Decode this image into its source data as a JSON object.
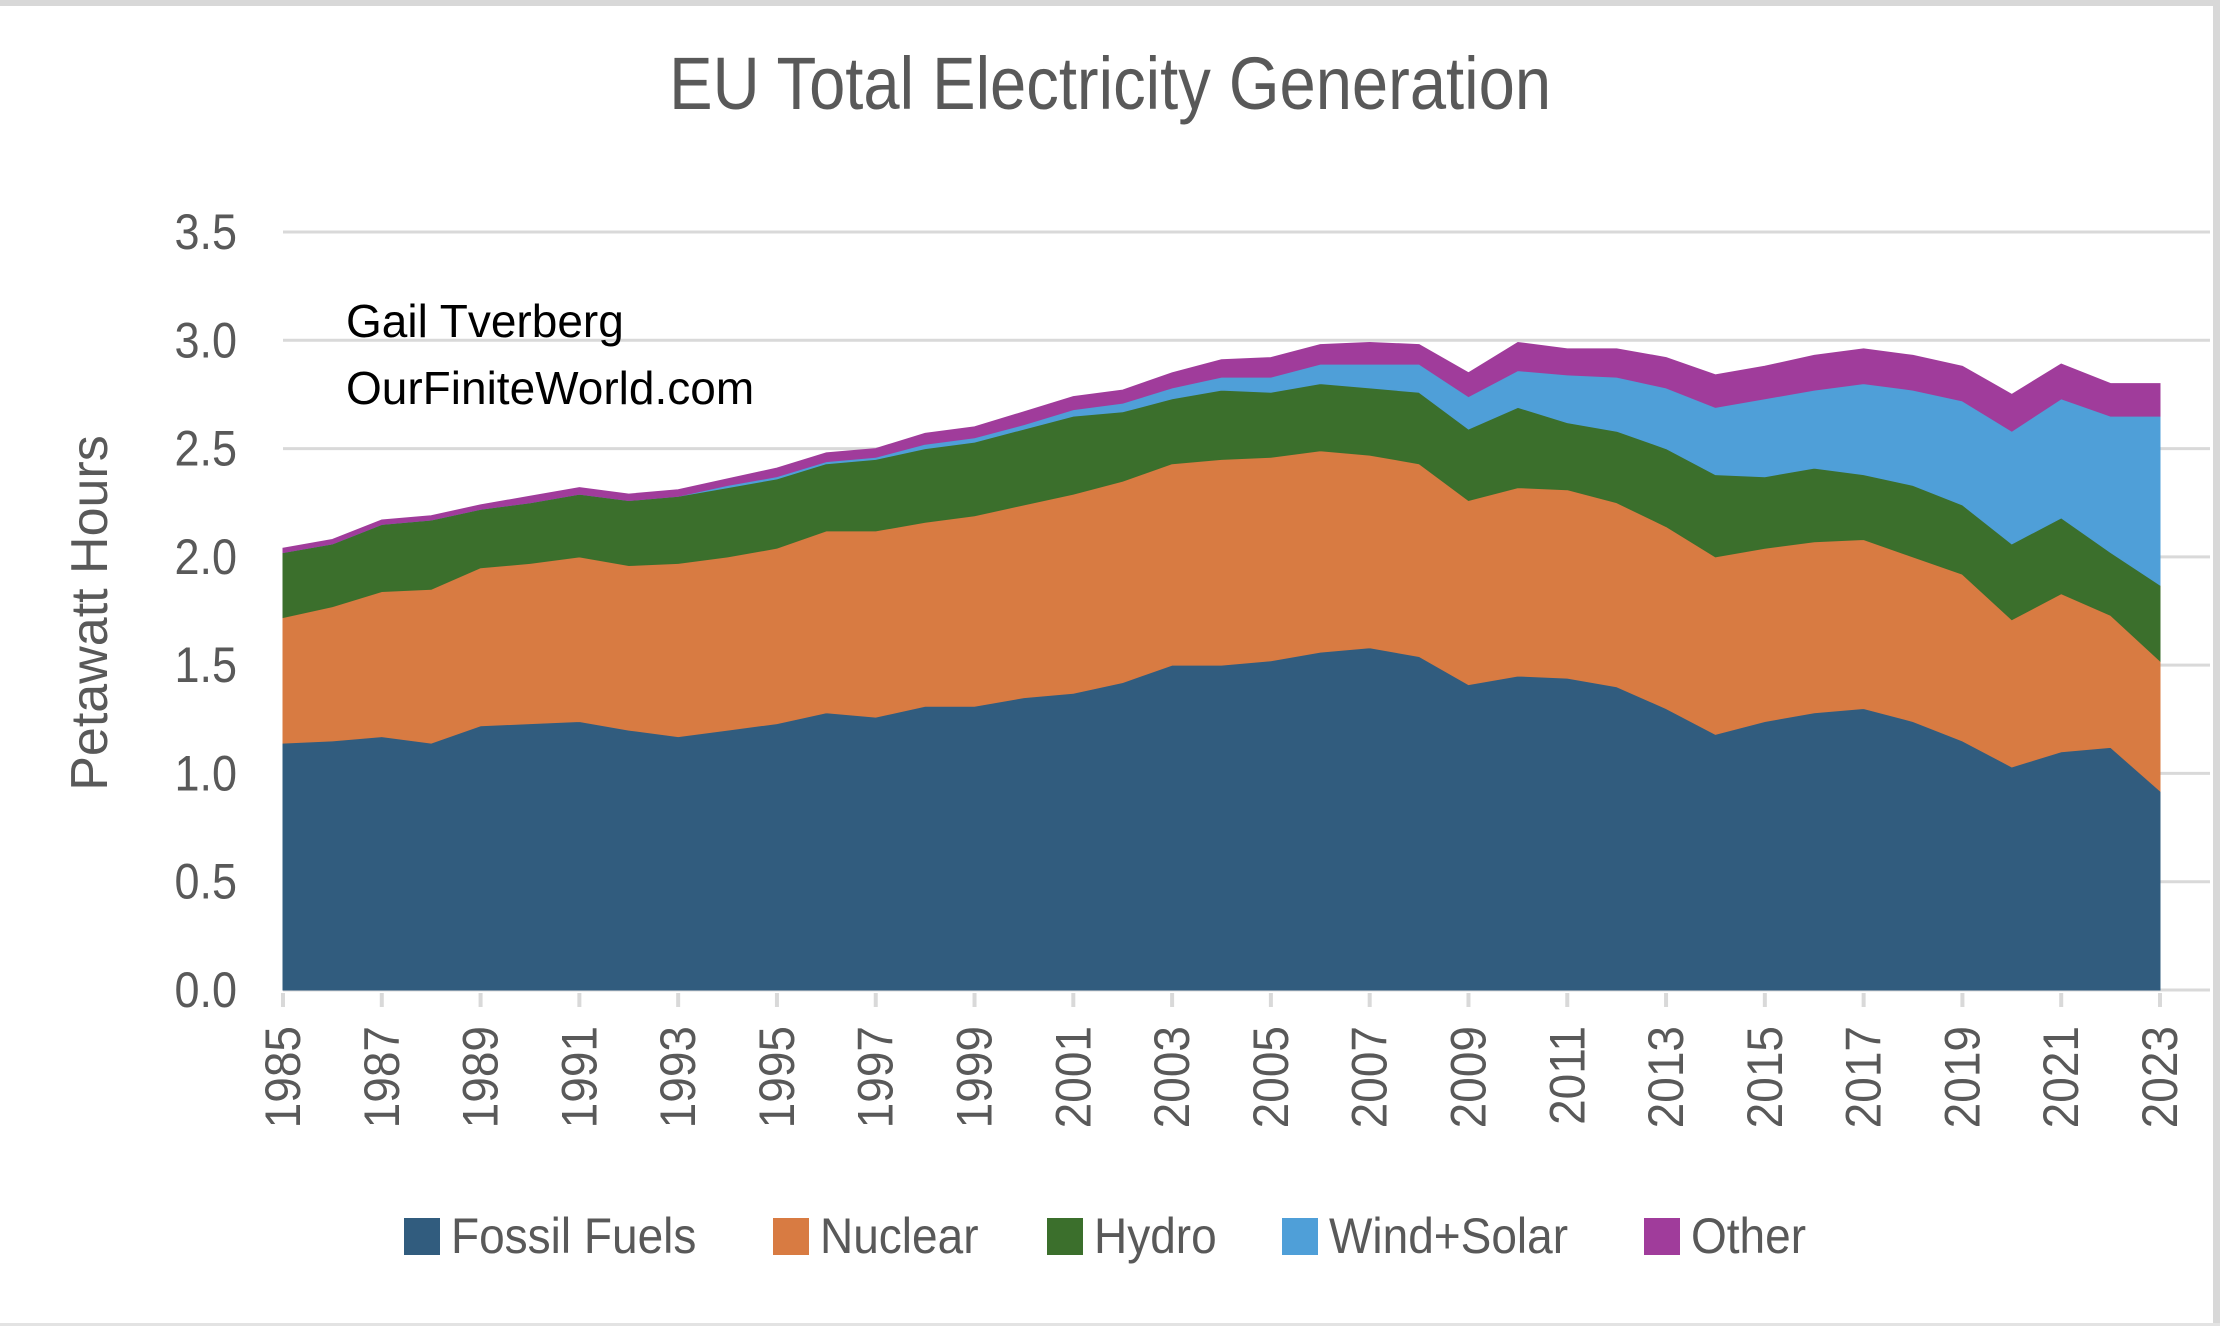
{
  "page": {
    "title": "EU Total Electricity Generation"
  },
  "annotation": {
    "line1": "Gail Tverberg",
    "line2": "OurFiniteWorld.com"
  },
  "y_axis": {
    "title": "Petawatt Hours"
  },
  "colors": {
    "grid": "#d9d9d9",
    "tick": "#d9d9d9",
    "axis_text": "#595959",
    "title_text": "#595959",
    "annotation_text": "#000000"
  },
  "chart_data": {
    "type": "area",
    "stacked": true,
    "title": "EU Total Electricity Generation",
    "xlabel": "",
    "ylabel": "Petawatt Hours",
    "ylim": [
      0,
      3.5
    ],
    "ytick_step": 0.5,
    "grid": true,
    "legend_position": "bottom",
    "x": [
      1985,
      1986,
      1987,
      1988,
      1989,
      1990,
      1991,
      1992,
      1993,
      1994,
      1995,
      1996,
      1997,
      1998,
      1999,
      2000,
      2001,
      2002,
      2003,
      2004,
      2005,
      2006,
      2007,
      2008,
      2009,
      2010,
      2011,
      2012,
      2013,
      2014,
      2015,
      2016,
      2017,
      2018,
      2019,
      2020,
      2021,
      2022,
      2023
    ],
    "xtick_every": 2,
    "series": [
      {
        "name": "Fossil Fuels",
        "color": "#315c7e",
        "values": [
          1.14,
          1.15,
          1.17,
          1.14,
          1.22,
          1.23,
          1.24,
          1.2,
          1.17,
          1.2,
          1.23,
          1.28,
          1.26,
          1.31,
          1.31,
          1.35,
          1.37,
          1.42,
          1.5,
          1.5,
          1.52,
          1.56,
          1.58,
          1.54,
          1.41,
          1.45,
          1.44,
          1.4,
          1.3,
          1.18,
          1.24,
          1.28,
          1.3,
          1.24,
          1.15,
          1.03,
          1.1,
          1.12,
          0.92
        ]
      },
      {
        "name": "Nuclear",
        "color": "#d87b42",
        "values": [
          0.58,
          0.62,
          0.67,
          0.71,
          0.73,
          0.74,
          0.76,
          0.76,
          0.8,
          0.8,
          0.81,
          0.84,
          0.86,
          0.85,
          0.88,
          0.89,
          0.92,
          0.93,
          0.93,
          0.95,
          0.94,
          0.93,
          0.89,
          0.89,
          0.85,
          0.87,
          0.87,
          0.85,
          0.84,
          0.82,
          0.8,
          0.79,
          0.78,
          0.76,
          0.77,
          0.68,
          0.73,
          0.61,
          0.6
        ]
      },
      {
        "name": "Hydro",
        "color": "#3b6f2c",
        "values": [
          0.3,
          0.29,
          0.31,
          0.32,
          0.27,
          0.28,
          0.29,
          0.3,
          0.31,
          0.32,
          0.32,
          0.31,
          0.33,
          0.34,
          0.34,
          0.35,
          0.36,
          0.32,
          0.3,
          0.32,
          0.3,
          0.31,
          0.31,
          0.33,
          0.33,
          0.37,
          0.31,
          0.33,
          0.36,
          0.38,
          0.33,
          0.34,
          0.3,
          0.33,
          0.32,
          0.35,
          0.35,
          0.29,
          0.35
        ]
      },
      {
        "name": "Wind+Solar",
        "color": "#4f9fd8",
        "values": [
          0.0,
          0.0,
          0.0,
          0.0,
          0.0,
          0.0,
          0.0,
          0.0,
          0.0,
          0.01,
          0.01,
          0.01,
          0.01,
          0.02,
          0.02,
          0.02,
          0.03,
          0.04,
          0.05,
          0.06,
          0.07,
          0.09,
          0.11,
          0.13,
          0.15,
          0.17,
          0.22,
          0.25,
          0.28,
          0.31,
          0.36,
          0.36,
          0.42,
          0.44,
          0.48,
          0.52,
          0.55,
          0.63,
          0.78
        ]
      },
      {
        "name": "Other",
        "color": "#a03c9b",
        "values": [
          0.02,
          0.02,
          0.02,
          0.02,
          0.02,
          0.03,
          0.03,
          0.03,
          0.03,
          0.03,
          0.04,
          0.04,
          0.04,
          0.05,
          0.05,
          0.06,
          0.06,
          0.06,
          0.07,
          0.08,
          0.09,
          0.09,
          0.1,
          0.09,
          0.11,
          0.13,
          0.12,
          0.13,
          0.14,
          0.15,
          0.15,
          0.16,
          0.16,
          0.16,
          0.16,
          0.17,
          0.16,
          0.15,
          0.15
        ]
      }
    ]
  }
}
